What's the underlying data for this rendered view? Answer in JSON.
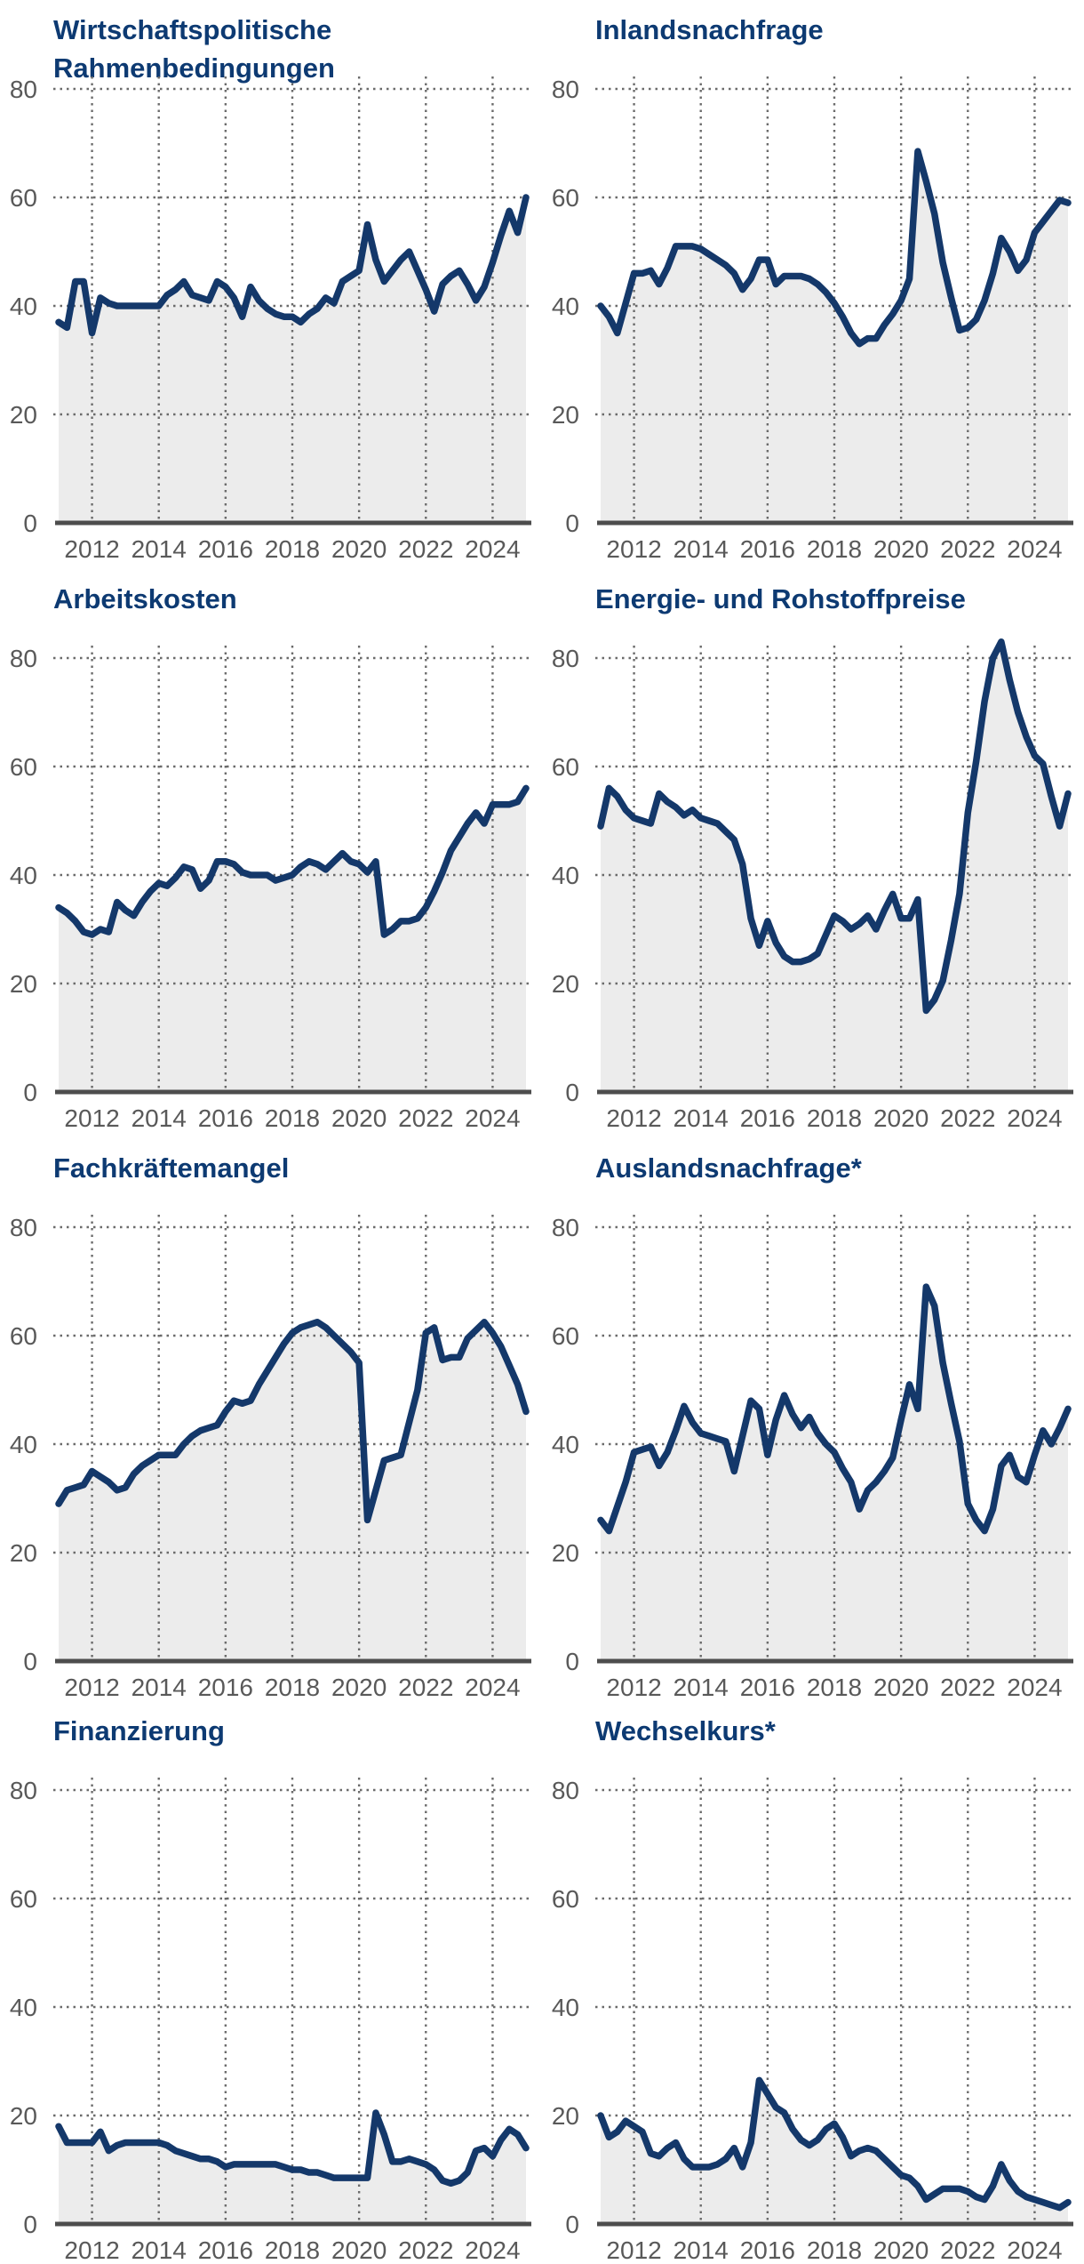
{
  "style": {
    "line_color": "#14386a",
    "area_fill_color": "#ececec",
    "title_color": "#0d3a72",
    "axis_label_color": "#595959",
    "grid_color": "#6b6b6b",
    "baseline_color": "#4d4d4d",
    "background": "#ffffff"
  },
  "axes": {
    "y_ticks": [
      0,
      20,
      40,
      60,
      80
    ],
    "x_ticks": [
      2012,
      2014,
      2016,
      2018,
      2020,
      2022,
      2024
    ],
    "x_start_year": 2011,
    "x_end_year": 2025,
    "frequency": "quarterly",
    "grid_style": "dotted",
    "ylim": [
      0,
      86
    ]
  },
  "chart_data": [
    {
      "type": "area",
      "title": "Wirtschaftspolitische Rahmenbedingungen",
      "ylim": [
        0,
        86
      ],
      "values": [
        37,
        36,
        44.5,
        44.5,
        35,
        41.5,
        40.5,
        40,
        40,
        40,
        40,
        40,
        40,
        42,
        43,
        44.5,
        42,
        41.5,
        41,
        44.5,
        43.5,
        41.5,
        38,
        43.5,
        41,
        39.5,
        38.5,
        38,
        38,
        37,
        38.5,
        39.5,
        41.5,
        40.5,
        44.5,
        45.5,
        46.5,
        55,
        48.5,
        44.5,
        46.5,
        48.5,
        50,
        46.5,
        43,
        39,
        44,
        45.5,
        46.5,
        44,
        41,
        43.5,
        48,
        53,
        57.5,
        53.5,
        60
      ]
    },
    {
      "type": "area",
      "title": "Inlandsnachfrage",
      "ylim": [
        0,
        86
      ],
      "values": [
        40,
        38,
        35,
        40.5,
        46,
        46,
        46.5,
        44,
        47,
        51,
        51,
        51,
        50.5,
        49.5,
        48.5,
        47.5,
        46,
        43,
        45,
        48.5,
        48.5,
        44,
        45.5,
        45.5,
        45.5,
        45,
        44,
        42.5,
        40.5,
        38,
        35,
        33,
        34,
        34,
        36.5,
        38.5,
        41,
        45,
        68.5,
        63,
        57,
        48,
        41.5,
        35.5,
        36,
        37.5,
        41,
        46,
        52.5,
        50,
        46.5,
        48.5,
        53.5,
        55.5,
        57.5,
        59.5,
        59
      ]
    },
    {
      "type": "area",
      "title": "Arbeitskosten",
      "ylim": [
        0,
        86
      ],
      "values": [
        34,
        33,
        31.5,
        29.5,
        29,
        30,
        29.5,
        35,
        33.5,
        32.5,
        35,
        37,
        38.5,
        38,
        39.5,
        41.5,
        41,
        37.5,
        39,
        42.5,
        42.5,
        42,
        40.5,
        40,
        40,
        40,
        39,
        39.5,
        40,
        41.5,
        42.5,
        42,
        41,
        42.5,
        44,
        42.5,
        42,
        40.5,
        42.5,
        29,
        30,
        31.5,
        31.5,
        32,
        34,
        37,
        40.5,
        44.5,
        47,
        49.5,
        51.5,
        49.5,
        53,
        53,
        53,
        53.5,
        56
      ]
    },
    {
      "type": "area",
      "title": "Energie- und Rohstoffpreise",
      "ylim": [
        0,
        86
      ],
      "values": [
        49,
        56,
        54.5,
        52,
        50.5,
        50,
        49.5,
        55,
        53.5,
        52.5,
        51,
        52,
        50.5,
        50,
        49.5,
        48,
        46.5,
        42,
        32,
        27,
        31.5,
        27.5,
        25,
        24,
        24,
        24.5,
        25.5,
        29,
        32.5,
        31.5,
        30,
        31,
        32.5,
        30,
        33.5,
        36.5,
        32,
        32,
        35.5,
        15,
        17,
        20.5,
        28,
        36.5,
        51.5,
        61,
        72,
        80,
        83,
        76,
        70,
        65.5,
        62,
        60.5,
        54.5,
        49,
        55
      ]
    },
    {
      "type": "area",
      "title": "Fachkräftemangel",
      "ylim": [
        0,
        86
      ],
      "values": [
        29,
        31.5,
        32,
        32.5,
        35,
        34,
        33,
        31.5,
        32,
        34.5,
        36,
        37,
        38,
        38,
        38,
        40,
        41.5,
        42.5,
        43,
        43.5,
        46,
        48,
        47.5,
        48,
        51,
        53.5,
        56,
        58.5,
        60.5,
        61.5,
        62,
        62.5,
        61.5,
        60,
        58.5,
        57,
        55,
        26,
        31.5,
        37,
        37.5,
        38,
        44,
        50,
        60.5,
        61.5,
        55.5,
        56,
        56,
        59.5,
        61,
        62.5,
        60.5,
        58,
        54.5,
        51,
        46
      ]
    },
    {
      "type": "area",
      "title": "Auslandsnachfrage*",
      "ylim": [
        0,
        86
      ],
      "values": [
        26,
        24,
        28.5,
        33,
        38.5,
        39,
        39.5,
        36,
        38.5,
        42.5,
        47,
        44,
        42,
        41.5,
        41,
        40.5,
        35,
        41.5,
        48,
        46.5,
        38,
        44.5,
        49,
        45.5,
        43,
        45,
        42,
        40,
        38.5,
        35.5,
        33,
        28,
        31.5,
        33,
        35,
        37.5,
        44.5,
        51,
        46.5,
        69,
        65.5,
        55,
        47.5,
        40.5,
        29,
        26,
        24,
        28,
        36,
        38,
        34,
        33,
        38,
        42.5,
        40,
        43,
        46.5
      ]
    },
    {
      "type": "area",
      "title": "Finanzierung",
      "ylim": [
        0,
        86
      ],
      "values": [
        18,
        15,
        15,
        15,
        15,
        17,
        13.5,
        14.5,
        15,
        15,
        15,
        15,
        15,
        14.5,
        13.5,
        13,
        12.5,
        12,
        12,
        11.5,
        10.5,
        11,
        11,
        11,
        11,
        11,
        11,
        10.5,
        10,
        10,
        9.5,
        9.5,
        9,
        8.5,
        8.5,
        8.5,
        8.5,
        8.5,
        20.5,
        16.5,
        11.5,
        11.5,
        12,
        11.5,
        11,
        10,
        8,
        7.5,
        8,
        9.5,
        13.5,
        14,
        12.5,
        15.5,
        17.5,
        16.5,
        14
      ]
    },
    {
      "type": "area",
      "title": "Wechselkurs*",
      "ylim": [
        0,
        86
      ],
      "values": [
        20,
        16,
        17,
        19,
        18,
        17,
        13,
        12.5,
        14,
        15,
        12,
        10.5,
        10.5,
        10.5,
        11,
        12,
        14,
        10.5,
        15,
        26.5,
        24,
        21.5,
        20.5,
        17.5,
        15.5,
        14.5,
        15.5,
        17.5,
        18.5,
        16,
        12.5,
        13.5,
        14,
        13.5,
        12,
        10.5,
        9,
        8.5,
        7,
        4.5,
        5.5,
        6.5,
        6.5,
        6.5,
        6,
        5,
        4.5,
        7,
        11,
        8,
        6,
        5,
        4.5,
        4,
        3.5,
        3,
        4
      ]
    }
  ]
}
